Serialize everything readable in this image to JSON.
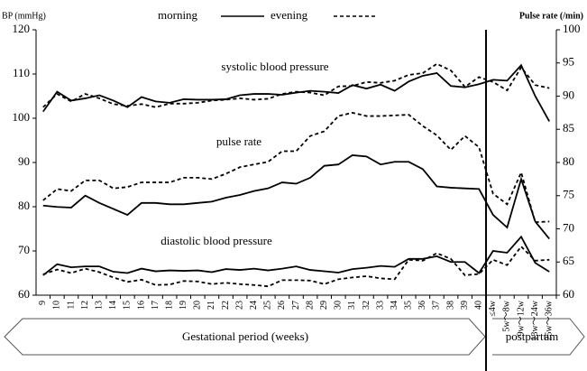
{
  "chart_data": {
    "type": "line",
    "y_label": "BP (mmHg)",
    "y2_label": "Pulse rate (/min)",
    "color": "#000000",
    "legend": [
      {
        "name": "morning",
        "dash": "solid"
      },
      {
        "name": "evening",
        "dash": "dashed"
      }
    ],
    "x_groups": [
      {
        "label": "Gestational period (weeks)",
        "categories": [
          "9",
          "10",
          "11",
          "12",
          "13",
          "14",
          "15",
          "16",
          "17",
          "18",
          "19",
          "20",
          "21",
          "22",
          "23",
          "24",
          "25",
          "26",
          "27",
          "28",
          "29",
          "30",
          "31",
          "32",
          "33",
          "34",
          "35",
          "36",
          "37",
          "38",
          "39",
          "40"
        ]
      },
      {
        "label": "postpartum",
        "categories": [
          "≤4w",
          "5w～8w",
          "9w～12w",
          "13w～24w",
          "25w～36w"
        ]
      }
    ],
    "ylim": [
      60,
      120
    ],
    "yticks": [
      60,
      70,
      80,
      90,
      100,
      110,
      120
    ],
    "y2lim": [
      60,
      100
    ],
    "y2ticks": [
      60,
      65,
      70,
      75,
      80,
      85,
      90,
      95,
      100
    ],
    "measures": [
      {
        "label": "systolic blood pressure",
        "axis": "y",
        "values": [
          [
            101.5,
            106,
            104,
            104.5,
            105.2,
            104,
            102.5,
            104.8,
            103.8,
            103.5,
            104.3,
            104.2,
            104.2,
            104.3,
            105.2,
            105.5,
            105.5,
            105.3,
            105.8,
            106.2,
            106,
            105.7,
            107.5,
            106.7,
            107.6,
            106.2,
            108.3,
            109.6,
            110.2,
            107.3,
            107,
            107.7,
            108.7,
            108.5,
            112,
            105,
            99.3
          ],
          [
            102.5,
            105.5,
            103.8,
            105.5,
            104.5,
            103.2,
            102.8,
            103.2,
            102.5,
            103.3,
            103.3,
            103.5,
            104,
            104.2,
            104.5,
            104.2,
            104.4,
            105.5,
            106,
            105.8,
            105.2,
            107.2,
            107.3,
            108.2,
            108,
            108.5,
            109.8,
            110.2,
            112.3,
            110.8,
            107.1,
            109.3,
            108.2,
            106.3,
            111.5,
            107.5,
            106.8
          ]
        ]
      },
      {
        "label": "pulse rate",
        "axis": "y2",
        "values": [
          [
            73.5,
            73.3,
            73.2,
            75,
            73.9,
            73,
            72.1,
            73.9,
            73.9,
            73.7,
            73.7,
            73.9,
            74.1,
            74.7,
            75.1,
            75.7,
            76.1,
            77,
            76.8,
            77.7,
            79.5,
            79.7,
            81.1,
            80.9,
            79.7,
            80.1,
            80.1,
            79,
            76.4,
            76.2,
            76.1,
            76,
            72.1,
            70.2,
            77.5,
            71.1,
            68.5
          ],
          [
            74.3,
            76,
            75.7,
            77.3,
            77.3,
            76.1,
            76.3,
            77,
            77,
            77,
            77.7,
            77.7,
            77.5,
            78.3,
            79.3,
            79.7,
            80.1,
            81.7,
            81.7,
            84,
            84.7,
            87,
            87.5,
            87,
            87,
            87.1,
            87.2,
            85.5,
            84.1,
            81.9,
            84,
            82.3,
            75.3,
            73.7,
            78.5,
            71,
            71.1
          ]
        ]
      },
      {
        "label": "diastolic blood pressure",
        "axis": "y",
        "values": [
          [
            64.5,
            67,
            66.3,
            66.5,
            66.5,
            65.3,
            65,
            66,
            65.4,
            65.6,
            65.5,
            65.6,
            65.2,
            65.9,
            65.7,
            66,
            65.6,
            66,
            66.5,
            65.7,
            65.4,
            65.1,
            65.9,
            66.2,
            66.6,
            66.4,
            68.2,
            68.2,
            68.8,
            67.5,
            67.5,
            65,
            70,
            69.6,
            73.2,
            67.3,
            65.3
          ],
          [
            64.7,
            65.8,
            65,
            66,
            65.2,
            64,
            63,
            63.5,
            62.3,
            62.4,
            63.2,
            63.1,
            62.5,
            62.8,
            62.5,
            62.3,
            62,
            63.4,
            63.4,
            63.3,
            62.5,
            63.6,
            64,
            64.3,
            63.8,
            63.6,
            68,
            67.8,
            69.5,
            68.2,
            64.5,
            64.8,
            68,
            66.8,
            71,
            67.8,
            68
          ]
        ]
      }
    ]
  }
}
